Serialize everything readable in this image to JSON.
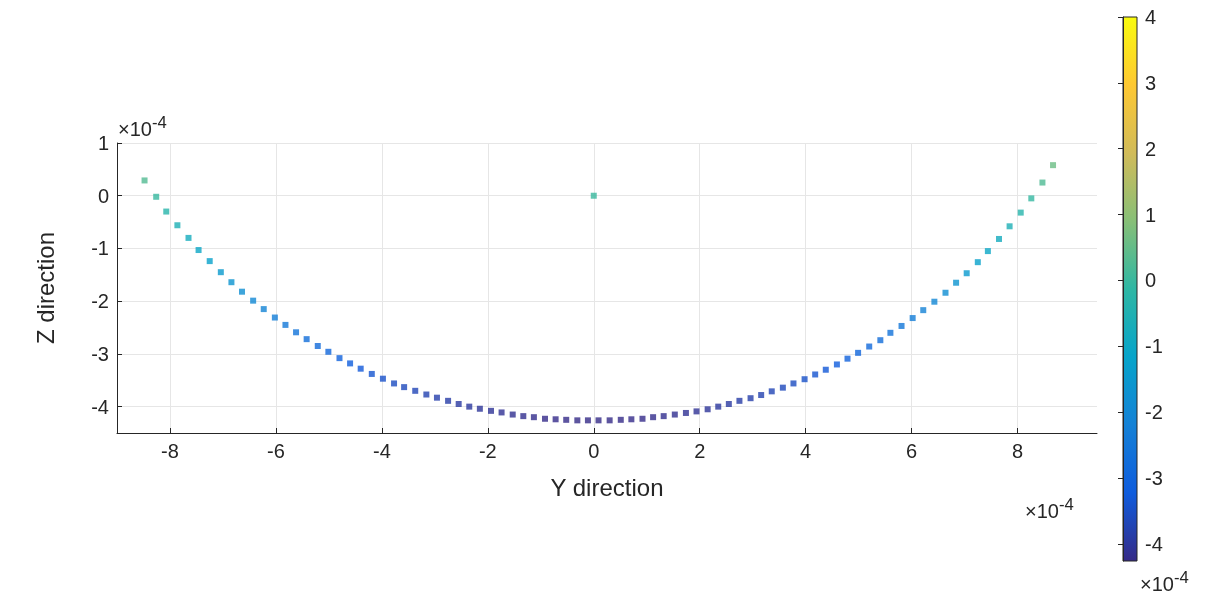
{
  "chart_data": {
    "type": "scatter",
    "xlabel": "Y direction",
    "ylabel": "Z direction",
    "x": [
      -8.48,
      -8.26,
      -8.07,
      -7.86,
      -7.65,
      -7.46,
      -7.25,
      -7.04,
      -6.84,
      -6.64,
      -6.43,
      -6.23,
      -6.02,
      -5.82,
      -5.62,
      -5.42,
      -5.21,
      -5.01,
      -4.8,
      -4.6,
      -4.4,
      -4.19,
      -3.98,
      -3.77,
      -3.58,
      -3.37,
      -3.16,
      -2.96,
      -2.75,
      -2.55,
      -2.35,
      -2.15,
      -1.94,
      -1.74,
      -1.53,
      -1.33,
      -1.13,
      -0.92,
      -0.72,
      -0.52,
      -0.31,
      -0.11,
      0.09,
      0.3,
      0.51,
      0.71,
      0.92,
      1.12,
      1.32,
      1.53,
      1.74,
      1.94,
      2.15,
      2.35,
      2.55,
      2.75,
      2.96,
      3.16,
      3.36,
      3.57,
      3.77,
      3.98,
      4.18,
      4.38,
      4.59,
      4.79,
      4.99,
      5.2,
      5.41,
      5.6,
      5.81,
      6.02,
      6.22,
      6.43,
      6.64,
      6.84,
      7.04,
      7.25,
      7.44,
      7.65,
      7.85,
      8.06,
      8.26,
      8.47,
      8.67,
      0
    ],
    "values": [
      0.29,
      -0.02,
      -0.3,
      -0.56,
      -0.8,
      -1.03,
      -1.24,
      -1.45,
      -1.64,
      -1.82,
      -1.99,
      -2.15,
      -2.31,
      -2.45,
      -2.59,
      -2.72,
      -2.85,
      -2.96,
      -3.08,
      -3.18,
      -3.28,
      -3.38,
      -3.47,
      -3.56,
      -3.63,
      -3.7,
      -3.77,
      -3.83,
      -3.89,
      -3.95,
      -4.0,
      -4.04,
      -4.08,
      -4.11,
      -4.15,
      -4.18,
      -4.2,
      -4.23,
      -4.24,
      -4.25,
      -4.26,
      -4.26,
      -4.26,
      -4.26,
      -4.25,
      -4.24,
      -4.23,
      -4.2,
      -4.18,
      -4.15,
      -4.12,
      -4.09,
      -4.05,
      -4.0,
      -3.95,
      -3.89,
      -3.84,
      -3.78,
      -3.71,
      -3.64,
      -3.56,
      -3.48,
      -3.39,
      -3.3,
      -3.2,
      -3.09,
      -2.98,
      -2.86,
      -2.74,
      -2.6,
      -2.47,
      -2.32,
      -2.17,
      -2.01,
      -1.84,
      -1.65,
      -1.47,
      -1.26,
      -1.05,
      -0.82,
      -0.58,
      -0.32,
      -0.05,
      0.25,
      0.58,
      0
    ],
    "cvalues": [
      0.29,
      -0.02,
      -0.3,
      -0.56,
      -0.8,
      -1.03,
      -1.24,
      -1.45,
      -1.64,
      -1.82,
      -1.99,
      -2.15,
      -2.31,
      -2.45,
      -2.59,
      -2.72,
      -2.85,
      -2.96,
      -3.08,
      -3.18,
      -3.28,
      -3.38,
      -3.47,
      -3.56,
      -3.63,
      -3.7,
      -3.77,
      -3.83,
      -3.89,
      -3.95,
      -4.0,
      -4.04,
      -4.08,
      -4.11,
      -4.15,
      -4.18,
      -4.2,
      -4.23,
      -4.24,
      -4.25,
      -4.26,
      -4.26,
      -4.26,
      -4.26,
      -4.25,
      -4.24,
      -4.23,
      -4.2,
      -4.18,
      -4.15,
      -4.12,
      -4.09,
      -4.05,
      -4.0,
      -3.95,
      -3.89,
      -3.84,
      -3.78,
      -3.71,
      -3.64,
      -3.56,
      -3.48,
      -3.39,
      -3.3,
      -3.2,
      -3.09,
      -2.98,
      -2.86,
      -2.74,
      -2.6,
      -2.47,
      -2.32,
      -2.17,
      -2.01,
      -1.84,
      -1.65,
      -1.47,
      -1.26,
      -1.05,
      -0.82,
      -0.58,
      -0.32,
      -0.05,
      0.25,
      0.58,
      0
    ],
    "xlim": [
      -9,
      9.5
    ],
    "xticks": [
      -8,
      -6,
      -4,
      -2,
      0,
      2,
      4,
      6,
      8
    ],
    "ylim": [
      -4.5,
      1
    ],
    "yticks": [
      -4,
      -3,
      -2,
      -1,
      0,
      1
    ],
    "clim": [
      -4.26,
      4
    ],
    "cticks": [
      -4,
      -3,
      -2,
      -1,
      0,
      1,
      2,
      3,
      4
    ],
    "annotations": [
      "×10$^{-4}$",
      "×10$^{-4}$",
      "×10$^{-4}$"
    ],
    "marker": "square",
    "grid": true
  }
}
